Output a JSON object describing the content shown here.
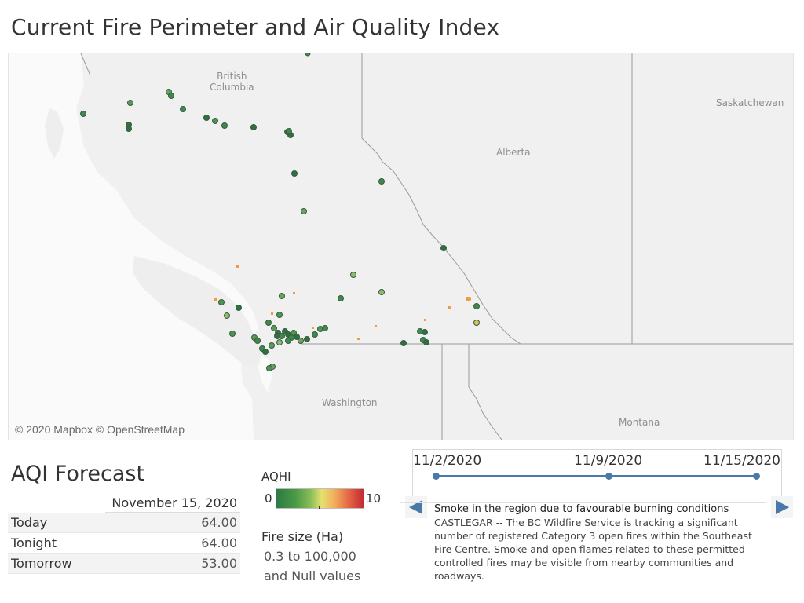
{
  "title": "Current Fire Perimeter and Air Quality Index",
  "map": {
    "labels": {
      "british_columbia": [
        "British",
        "Columbia"
      ],
      "alberta": "Alberta",
      "saskatchewan": "Saskatchewan",
      "washington": "Washington",
      "montana": "Montana"
    },
    "attribution": "© 2020 Mapbox © OpenStreetMap",
    "colors": {
      "background": "#f0f0f0",
      "land": "#eeeeee",
      "water": "#fafafa",
      "border": "#9a9a9a",
      "point_stroke": "#3a5a40",
      "fire_perimeter": "#f29a3c"
    }
  },
  "aqi_forecast": {
    "title": "AQI Forecast",
    "date": "November 15, 2020",
    "rows": [
      {
        "label": "Today",
        "value": "64.00"
      },
      {
        "label": "Tonight",
        "value": "64.00"
      },
      {
        "label": "Tomorrow",
        "value": "53.00"
      }
    ]
  },
  "legend": {
    "aqhi_title": "AQHI",
    "min": "0",
    "max": "10",
    "fire_size_title": "Fire size (Ha)",
    "fire_size_line1": "0.3 to 100,000",
    "fire_size_line2": "and Null values"
  },
  "timeline": {
    "dates": [
      "11/2/2020",
      "11/9/2020",
      "11/15/2020"
    ],
    "color": "#4a78a8"
  },
  "news": {
    "headline": "Smoke in the region due to favourable burning conditions",
    "body": "CASTLEGAR -- The BC Wildfire Service is tracking a significant number of registered Category 3 open fires within the Southeast Fire Centre. Smoke and open flames related to these permitted controlled fires may be visible from nearby communities and roadways."
  },
  "icons": {
    "prev": "triangle-left-icon",
    "next": "triangle-right-icon"
  }
}
